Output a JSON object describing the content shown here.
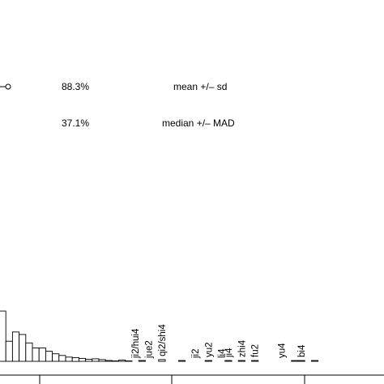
{
  "chart_data": {
    "type": "bar",
    "stats": [
      {
        "pct": "88.3%",
        "label": "mean +/– sd"
      },
      {
        "pct": "37.1%",
        "label": "median +/– MAD"
      }
    ],
    "values": [
      6,
      2.4,
      3.5,
      3.2,
      2.2,
      1.6,
      1.6,
      1.2,
      0.9,
      0.7,
      0.5,
      0.45,
      0.35,
      0.25,
      0.3,
      0.2,
      0.1,
      0.05,
      0.15,
      0.05,
      0.0,
      0.1,
      0.0,
      0.0,
      0.2,
      0.0,
      0.0,
      0.1,
      0.0,
      0.0,
      0.0,
      0.1,
      0.0,
      0.0,
      0.1,
      0.0,
      0.1,
      0.0,
      0.1,
      0.0,
      0.0,
      0.0,
      0.0,
      0.0,
      0.1,
      0.1,
      0.0,
      0.1
    ],
    "ylim": [
      0,
      6
    ],
    "annotations": [
      {
        "text": "ji2/hui4",
        "bin": 20
      },
      {
        "text": "jue2",
        "bin": 22
      },
      {
        "text": "qi2/shi4",
        "bin": 24
      },
      {
        "text": "ji2",
        "bin": 29
      },
      {
        "text": "yu2",
        "bin": 31
      },
      {
        "text": "li4",
        "bin": 33
      },
      {
        "text": "ji4",
        "bin": 34
      },
      {
        "text": "zhi4",
        "bin": 36
      },
      {
        "text": "fu2",
        "bin": 38
      },
      {
        "text": "yu4",
        "bin": 42
      },
      {
        "text": "bi4",
        "bin": 45
      }
    ]
  }
}
